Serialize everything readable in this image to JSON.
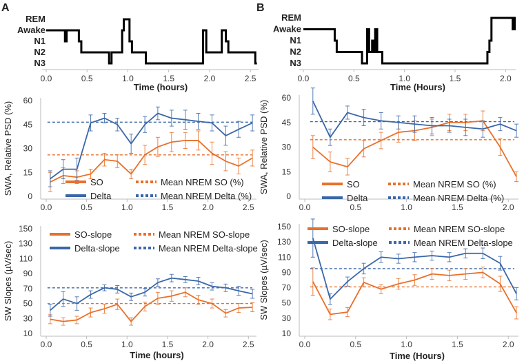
{
  "panels": [
    "A",
    "B"
  ],
  "colors": {
    "so": "#E8702A",
    "delta": "#3A67A8",
    "hypno": "#000000",
    "axis": "#BBBBBB"
  },
  "chart_data": [
    {
      "id": "A-hypno",
      "panel": "A",
      "type": "line",
      "stage_labels": [
        "REM",
        "Awake",
        "N1",
        "N2",
        "N3"
      ],
      "xlabel": "Time (hours)",
      "xlim": [
        0,
        2.6
      ],
      "xticks": [
        0,
        0.5,
        1,
        1.5,
        2,
        2.5
      ],
      "xtick_labels": [
        "0.0",
        "0.5",
        "1.0",
        "1.5",
        "2.0",
        "2.5"
      ],
      "steps": [
        [
          0.0,
          1
        ],
        [
          0.22,
          1
        ],
        [
          0.23,
          2
        ],
        [
          0.25,
          1
        ],
        [
          0.37,
          1
        ],
        [
          0.4,
          2
        ],
        [
          0.43,
          3
        ],
        [
          0.75,
          3
        ],
        [
          0.77,
          4
        ],
        [
          0.8,
          3
        ],
        [
          0.9,
          3
        ],
        [
          0.93,
          1
        ],
        [
          0.95,
          0
        ],
        [
          1.0,
          0
        ],
        [
          1.02,
          2
        ],
        [
          1.05,
          3
        ],
        [
          1.2,
          3
        ],
        [
          1.22,
          4
        ],
        [
          1.9,
          4
        ],
        [
          1.92,
          1
        ],
        [
          1.96,
          3
        ],
        [
          2.08,
          3
        ],
        [
          2.15,
          1
        ],
        [
          2.2,
          2
        ],
        [
          2.23,
          3
        ],
        [
          2.55,
          3
        ],
        [
          2.56,
          4
        ],
        [
          2.58,
          4
        ]
      ]
    },
    {
      "id": "B-hypno",
      "panel": "B",
      "type": "line",
      "stage_labels": [
        "REM",
        "Awake",
        "N1",
        "N2",
        "N3"
      ],
      "xlabel": "Time (Hours)",
      "xlim": [
        0,
        2.1
      ],
      "xticks": [
        0,
        0.5,
        1,
        1.5,
        2
      ],
      "xtick_labels": [
        "0.0",
        "0.5",
        "1.0",
        "1.5",
        "2.0"
      ],
      "steps": [
        [
          0.0,
          1
        ],
        [
          0.3,
          1
        ],
        [
          0.31,
          2
        ],
        [
          0.33,
          3
        ],
        [
          0.56,
          3
        ],
        [
          0.58,
          4
        ],
        [
          0.6,
          4
        ],
        [
          0.63,
          1
        ],
        [
          0.65,
          3
        ],
        [
          0.68,
          2
        ],
        [
          0.7,
          3
        ],
        [
          0.71,
          1
        ],
        [
          0.73,
          3
        ],
        [
          0.76,
          3
        ],
        [
          0.78,
          4
        ],
        [
          1.8,
          4
        ],
        [
          1.82,
          3
        ],
        [
          1.84,
          2
        ],
        [
          1.86,
          0
        ],
        [
          2.06,
          0
        ],
        [
          2.07,
          1
        ],
        [
          2.09,
          0
        ],
        [
          2.1,
          0
        ]
      ]
    },
    {
      "id": "A-swa",
      "panel": "A",
      "type": "line",
      "ylabel": "SWA, Relative PSD (%)",
      "xlabel": "",
      "xlim": [
        0,
        2.6
      ],
      "ylim": [
        0,
        60
      ],
      "xticks": [
        0,
        0.5,
        1,
        1.5,
        2,
        2.5
      ],
      "xtick_labels": [
        "0.0",
        "0.5",
        "1.0",
        "1.5",
        "2.0",
        "2.5"
      ],
      "yticks": [
        0,
        15,
        30,
        45,
        60
      ],
      "ytick_labels": [
        "0",
        "15",
        "30",
        "45",
        "60"
      ],
      "x": [
        0.05,
        0.21,
        0.38,
        0.55,
        0.72,
        0.88,
        1.05,
        1.22,
        1.38,
        1.55,
        1.72,
        1.88,
        2.05,
        2.22,
        2.38,
        2.55
      ],
      "series": [
        {
          "name": "SO",
          "color_key": "so",
          "values": [
            9,
            13,
            12,
            14,
            23,
            22,
            14,
            26,
            31,
            34,
            35,
            35,
            27,
            22,
            19,
            24
          ],
          "errors": [
            6,
            5,
            4,
            3,
            4,
            4,
            3,
            6,
            6,
            6,
            5,
            6,
            7,
            6,
            5,
            5
          ]
        },
        {
          "name": "Delta",
          "color_key": "delta",
          "values": [
            11,
            17,
            17,
            46,
            49,
            45,
            33,
            45,
            52,
            49,
            48,
            47,
            46,
            38,
            42,
            46
          ],
          "errors": [
            5,
            6,
            7,
            5,
            3,
            4,
            6,
            5,
            4,
            5,
            6,
            5,
            5,
            6,
            5,
            5
          ]
        }
      ],
      "means": [
        {
          "name": "Mean NREM SO (%)",
          "color_key": "so",
          "value": 26
        },
        {
          "name": "Mean NREM Delta (%)",
          "color_key": "delta",
          "value": 46.5
        }
      ]
    },
    {
      "id": "B-swa",
      "panel": "B",
      "type": "line",
      "ylabel": "SWA, Relative PSD (%)",
      "xlabel": "",
      "xlim": [
        0,
        2.1
      ],
      "ylim": [
        0,
        60
      ],
      "xticks": [
        0,
        0.5,
        1,
        1.5,
        2
      ],
      "xtick_labels": [
        "0.0",
        "0.5",
        "1.0",
        "1.5",
        "2.0"
      ],
      "yticks": [
        0,
        15,
        30,
        45,
        60
      ],
      "ytick_labels": [
        "0",
        "15",
        "30",
        "45",
        "60"
      ],
      "x": [
        0.08,
        0.25,
        0.42,
        0.58,
        0.75,
        0.92,
        1.08,
        1.25,
        1.42,
        1.58,
        1.75,
        1.92,
        2.08
      ],
      "series": [
        {
          "name": "SO",
          "color_key": "so",
          "values": [
            30,
            21,
            18,
            29,
            34,
            39,
            40,
            42,
            45,
            45,
            46,
            30,
            12
          ],
          "errors": [
            7,
            6,
            5,
            5,
            5,
            6,
            6,
            5,
            5,
            5,
            6,
            5,
            3
          ]
        },
        {
          "name": "Delta",
          "color_key": "delta",
          "values": [
            58,
            36,
            51,
            48,
            46,
            45,
            44,
            43,
            43,
            42,
            41,
            44,
            40
          ],
          "errors": [
            8,
            5,
            4,
            5,
            5,
            4,
            5,
            5,
            4,
            5,
            5,
            4,
            4
          ]
        }
      ],
      "means": [
        {
          "name": "Mean NREM SO (%)",
          "color_key": "so",
          "value": 34.5
        },
        {
          "name": "Mean NREM Delta (%)",
          "color_key": "delta",
          "value": 45.5
        }
      ]
    },
    {
      "id": "A-slopes",
      "panel": "A",
      "type": "line",
      "ylabel": "SW Slopes (µV/sec)",
      "xlabel": "Time (hours)",
      "xlim": [
        0,
        2.6
      ],
      "ylim": [
        10,
        150
      ],
      "xticks": [
        0,
        0.5,
        1,
        1.5,
        2,
        2.5
      ],
      "xtick_labels": [
        "0.0",
        "0.5",
        "1.0",
        "1.5",
        "2.0",
        "2.5"
      ],
      "yticks": [
        10,
        30,
        50,
        70,
        90,
        110,
        130,
        150
      ],
      "ytick_labels": [
        "10",
        "30",
        "50",
        "70",
        "90",
        "110",
        "130",
        "150"
      ],
      "x": [
        0.05,
        0.21,
        0.38,
        0.55,
        0.72,
        0.88,
        1.05,
        1.22,
        1.38,
        1.55,
        1.72,
        1.88,
        2.05,
        2.22,
        2.38,
        2.55
      ],
      "series": [
        {
          "name": "SO-slope",
          "color_key": "so",
          "values": [
            29,
            26,
            28,
            38,
            43,
            49,
            26,
            46,
            57,
            60,
            65,
            55,
            50,
            37,
            44,
            45
          ],
          "errors": [
            6,
            5,
            5,
            6,
            6,
            7,
            5,
            6,
            8,
            7,
            6,
            6,
            6,
            5,
            6,
            6
          ]
        },
        {
          "name": "Delta-slope",
          "color_key": "delta",
          "values": [
            41,
            56,
            50,
            62,
            71,
            69,
            59,
            65,
            78,
            84,
            82,
            80,
            73,
            71,
            67,
            63
          ],
          "errors": [
            8,
            10,
            9,
            5,
            4,
            5,
            5,
            5,
            5,
            5,
            4,
            5,
            5,
            5,
            6,
            6
          ]
        }
      ],
      "means": [
        {
          "name": "Mean NREM SO-slope",
          "color_key": "so",
          "value": 50
        },
        {
          "name": "Mean NREM Delta-slope",
          "color_key": "delta",
          "value": 71
        }
      ]
    },
    {
      "id": "B-slopes",
      "panel": "B",
      "type": "line",
      "ylabel": "SW Slopes (µV/sec)",
      "xlabel": "Time (Hours)",
      "xlim": [
        0,
        2.1
      ],
      "ylim": [
        10,
        150
      ],
      "xticks": [
        0,
        0.5,
        1,
        1.5,
        2
      ],
      "xtick_labels": [
        "0.0",
        "0.5",
        "1.0",
        "1.5",
        "2.0"
      ],
      "yticks": [
        10,
        30,
        50,
        70,
        90,
        110,
        130,
        150
      ],
      "ytick_labels": [
        "10",
        "30",
        "50",
        "70",
        "90",
        "110",
        "130",
        "150"
      ],
      "x": [
        0.08,
        0.25,
        0.42,
        0.58,
        0.75,
        0.92,
        1.08,
        1.25,
        1.42,
        1.58,
        1.75,
        1.92,
        2.08
      ],
      "series": [
        {
          "name": "SO-slope",
          "color_key": "so",
          "values": [
            78,
            35,
            38,
            77,
            68,
            75,
            80,
            88,
            86,
            88,
            90,
            75,
            37
          ],
          "errors": [
            18,
            7,
            6,
            6,
            6,
            7,
            7,
            7,
            7,
            7,
            7,
            10,
            8
          ]
        },
        {
          "name": "Delta-slope",
          "color_key": "delta",
          "values": [
            135,
            55,
            78,
            95,
            110,
            108,
            110,
            112,
            110,
            115,
            115,
            102,
            62
          ],
          "errors": [
            25,
            7,
            6,
            7,
            7,
            6,
            6,
            6,
            6,
            6,
            7,
            9,
            8
          ]
        }
      ],
      "means": [
        {
          "name": "Mean NREM SO-slope",
          "color_key": "so",
          "value": 71
        },
        {
          "name": "Mean NREM Delta-slope",
          "color_key": "delta",
          "value": 95
        }
      ]
    }
  ]
}
